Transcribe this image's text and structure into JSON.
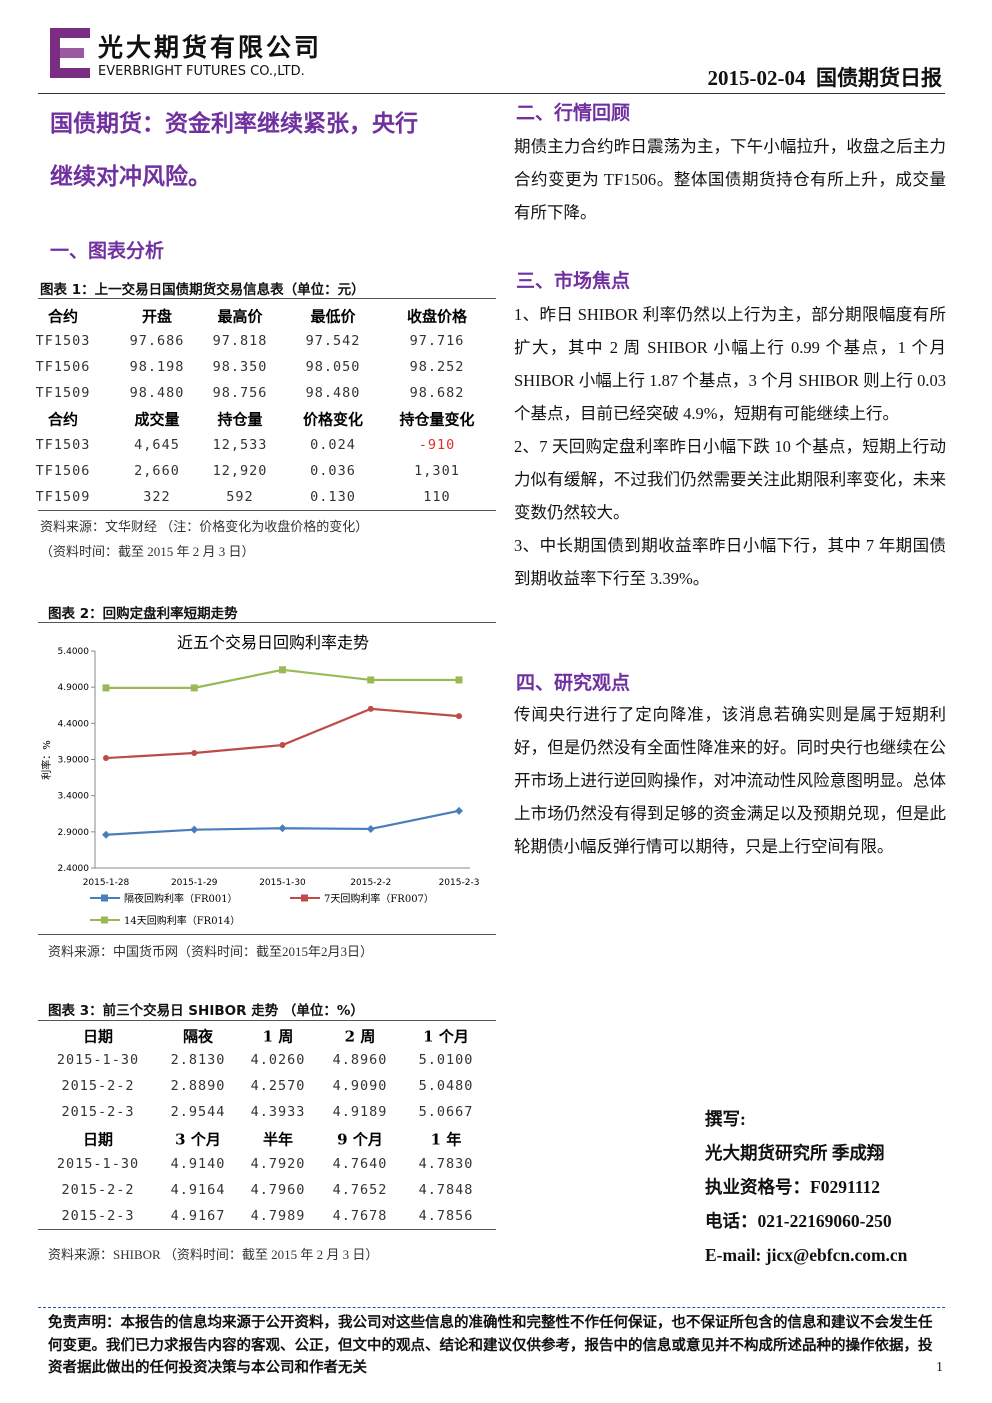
{
  "header": {
    "company_cn": "光大期货有限公司",
    "company_en": "EVERBRIGHT FUTURES CO.,LTD.",
    "date": "2015-02-04",
    "report": "国债期货日报"
  },
  "headline": {
    "line1": "国债期货：资金利率继续紧张，央行",
    "line2": "继续对冲风险。"
  },
  "section1": {
    "title": "一、图表分析"
  },
  "table1": {
    "caption": "图表 1：上一交易日国债期货交易信息表（单位：元）",
    "header1": [
      "合约",
      "开盘",
      "最高价",
      "最低价",
      "收盘价格"
    ],
    "rows1": [
      [
        "TF1503",
        "97.686",
        "97.818",
        "97.542",
        "97.716"
      ],
      [
        "TF1506",
        "98.198",
        "98.350",
        "98.050",
        "98.252"
      ],
      [
        "TF1509",
        "98.480",
        "98.756",
        "98.480",
        "98.682"
      ]
    ],
    "header2": [
      "合约",
      "成交量",
      "持仓量",
      "价格变化",
      "持仓量变化"
    ],
    "rows2": [
      [
        "TF1503",
        "4,645",
        "12,533",
        "0.024",
        "-910"
      ],
      [
        "TF1506",
        "2,660",
        "12,920",
        "0.036",
        "1,301"
      ],
      [
        "TF1509",
        "322",
        "592",
        "0.130",
        "110"
      ]
    ],
    "source": "资料来源：文华财经 （注：价格变化为收盘价格的变化）",
    "time": "（资料时间：截至 2015 年 2 月 3 日）"
  },
  "chart_caption": "图表 2：回购定盘利率短期走势",
  "chart_data": {
    "type": "line",
    "title": "近五个交易日回购利率走势",
    "y_label": "利率：%",
    "categories": [
      "2015-1-28",
      "2015-1-29",
      "2015-1-30",
      "2015-2-2",
      "2015-2-3"
    ],
    "series": [
      {
        "name": "隔夜回购利率（FR001）",
        "color": "#4a7ebb",
        "values": [
          2.86,
          2.93,
          2.95,
          2.94,
          3.19
        ]
      },
      {
        "name": "7天回购利率（FR007）",
        "color": "#be4b48",
        "values": [
          3.92,
          3.99,
          4.1,
          4.6,
          4.5
        ]
      },
      {
        "name": "14天回购利率（FR014）",
        "color": "#98b954",
        "values": [
          4.89,
          4.89,
          5.14,
          5.0,
          5.0
        ]
      }
    ],
    "ylim": [
      2.4,
      5.4
    ],
    "yticks": [
      {
        "value": 2.4,
        "label": "2.4000"
      },
      {
        "value": 2.9,
        "label": "2.9000"
      },
      {
        "value": 3.4,
        "label": "3.4000"
      },
      {
        "value": 3.9,
        "label": "3.9000"
      },
      {
        "value": 4.4,
        "label": "4.4000"
      },
      {
        "value": 4.9,
        "label": "4.9000"
      },
      {
        "value": 5.4,
        "label": "5.4000"
      }
    ]
  },
  "chart_source": "资料来源：中国货币网（资料时间：截至2015年2月3日）",
  "table3": {
    "caption": "图表 3：前三个交易日 SHIBOR 走势 （单位：%）",
    "header1": [
      "日期",
      "隔夜",
      "1 周",
      "2 周",
      "1 个月"
    ],
    "rows1": [
      [
        "2015-1-30",
        "2.8130",
        "4.0260",
        "4.8960",
        "5.0100"
      ],
      [
        "2015-2-2",
        "2.8890",
        "4.2570",
        "4.9090",
        "5.0480"
      ],
      [
        "2015-2-3",
        "2.9544",
        "4.3933",
        "4.9189",
        "5.0667"
      ]
    ],
    "header2": [
      "日期",
      "3 个月",
      "半年",
      "9 个月",
      "1 年"
    ],
    "rows2": [
      [
        "2015-1-30",
        "4.9140",
        "4.7920",
        "4.7640",
        "4.7830"
      ],
      [
        "2015-2-2",
        "4.9164",
        "4.7960",
        "4.7652",
        "4.7848"
      ],
      [
        "2015-2-3",
        "4.9167",
        "4.7989",
        "4.7678",
        "4.7856"
      ]
    ],
    "source": "资料来源：SHIBOR （资料时间：截至 2015 年 2 月 3 日）"
  },
  "section2": {
    "title": "二、行情回顾",
    "paragraphs": [
      "期债主力合约昨日震荡为主，下午小幅拉升，收盘之后主力合约变更为 TF1506。整体国债期货持仓有所上升，成交量有所下降。"
    ]
  },
  "section3": {
    "title": "三、市场焦点",
    "paragraphs": [
      "1、昨日 SHIBOR 利率仍然以上行为主，部分期限幅度有所扩大，其中 2 周 SHIBOR 小幅上行 0.99 个基点，1 个月 SHIBOR 小幅上行 1.87 个基点，3 个月 SHIBOR 则上行 0.03 个基点，目前已经突破 4.9%，短期有可能继续上行。",
      "2、7 天回购定盘利率昨日小幅下跌 10 个基点，短期上行动力似有缓解，不过我们仍然需要关注此期限利率变化，未来变数仍然较大。",
      "3、中长期国债到期收益率昨日小幅下行，其中 7 年期国债到期收益率下行至 3.39%。"
    ]
  },
  "section4": {
    "title": "四、研究观点",
    "paragraphs": [
      "传闻央行进行了定向降准，该消息若确实则是属于短期利好，但是仍然没有全面性降准来的好。同时央行也继续在公开市场上进行逆回购操作，对冲流动性风险意图明显。总体上市场仍然没有得到足够的资金满足以及预期兑现，但是此轮期债小幅反弹行情可以期待，只是上行空间有限。"
    ]
  },
  "author": {
    "label": "撰写:",
    "org": "光大期货研究所 季成翔",
    "license": "执业资格号：F0291112",
    "phone": "电话：021-22169060-250",
    "email": "E-mail: jicx@ebfcn.com.cn"
  },
  "footer": {
    "disclaimer": "免责声明：本报告的信息均来源于公开资料，我公司对这些信息的准确性和完整性不作任何保证，也不保证所包含的信息和建议不会发生任何变更。我们已力求报告内容的客观、公正，但文中的观点、结论和建议仅供参考，报告中的信息或意见并不构成所述品种的操作依据，投资者据此做出的任何投资决策与本公司和作者无关",
    "page": "1"
  }
}
